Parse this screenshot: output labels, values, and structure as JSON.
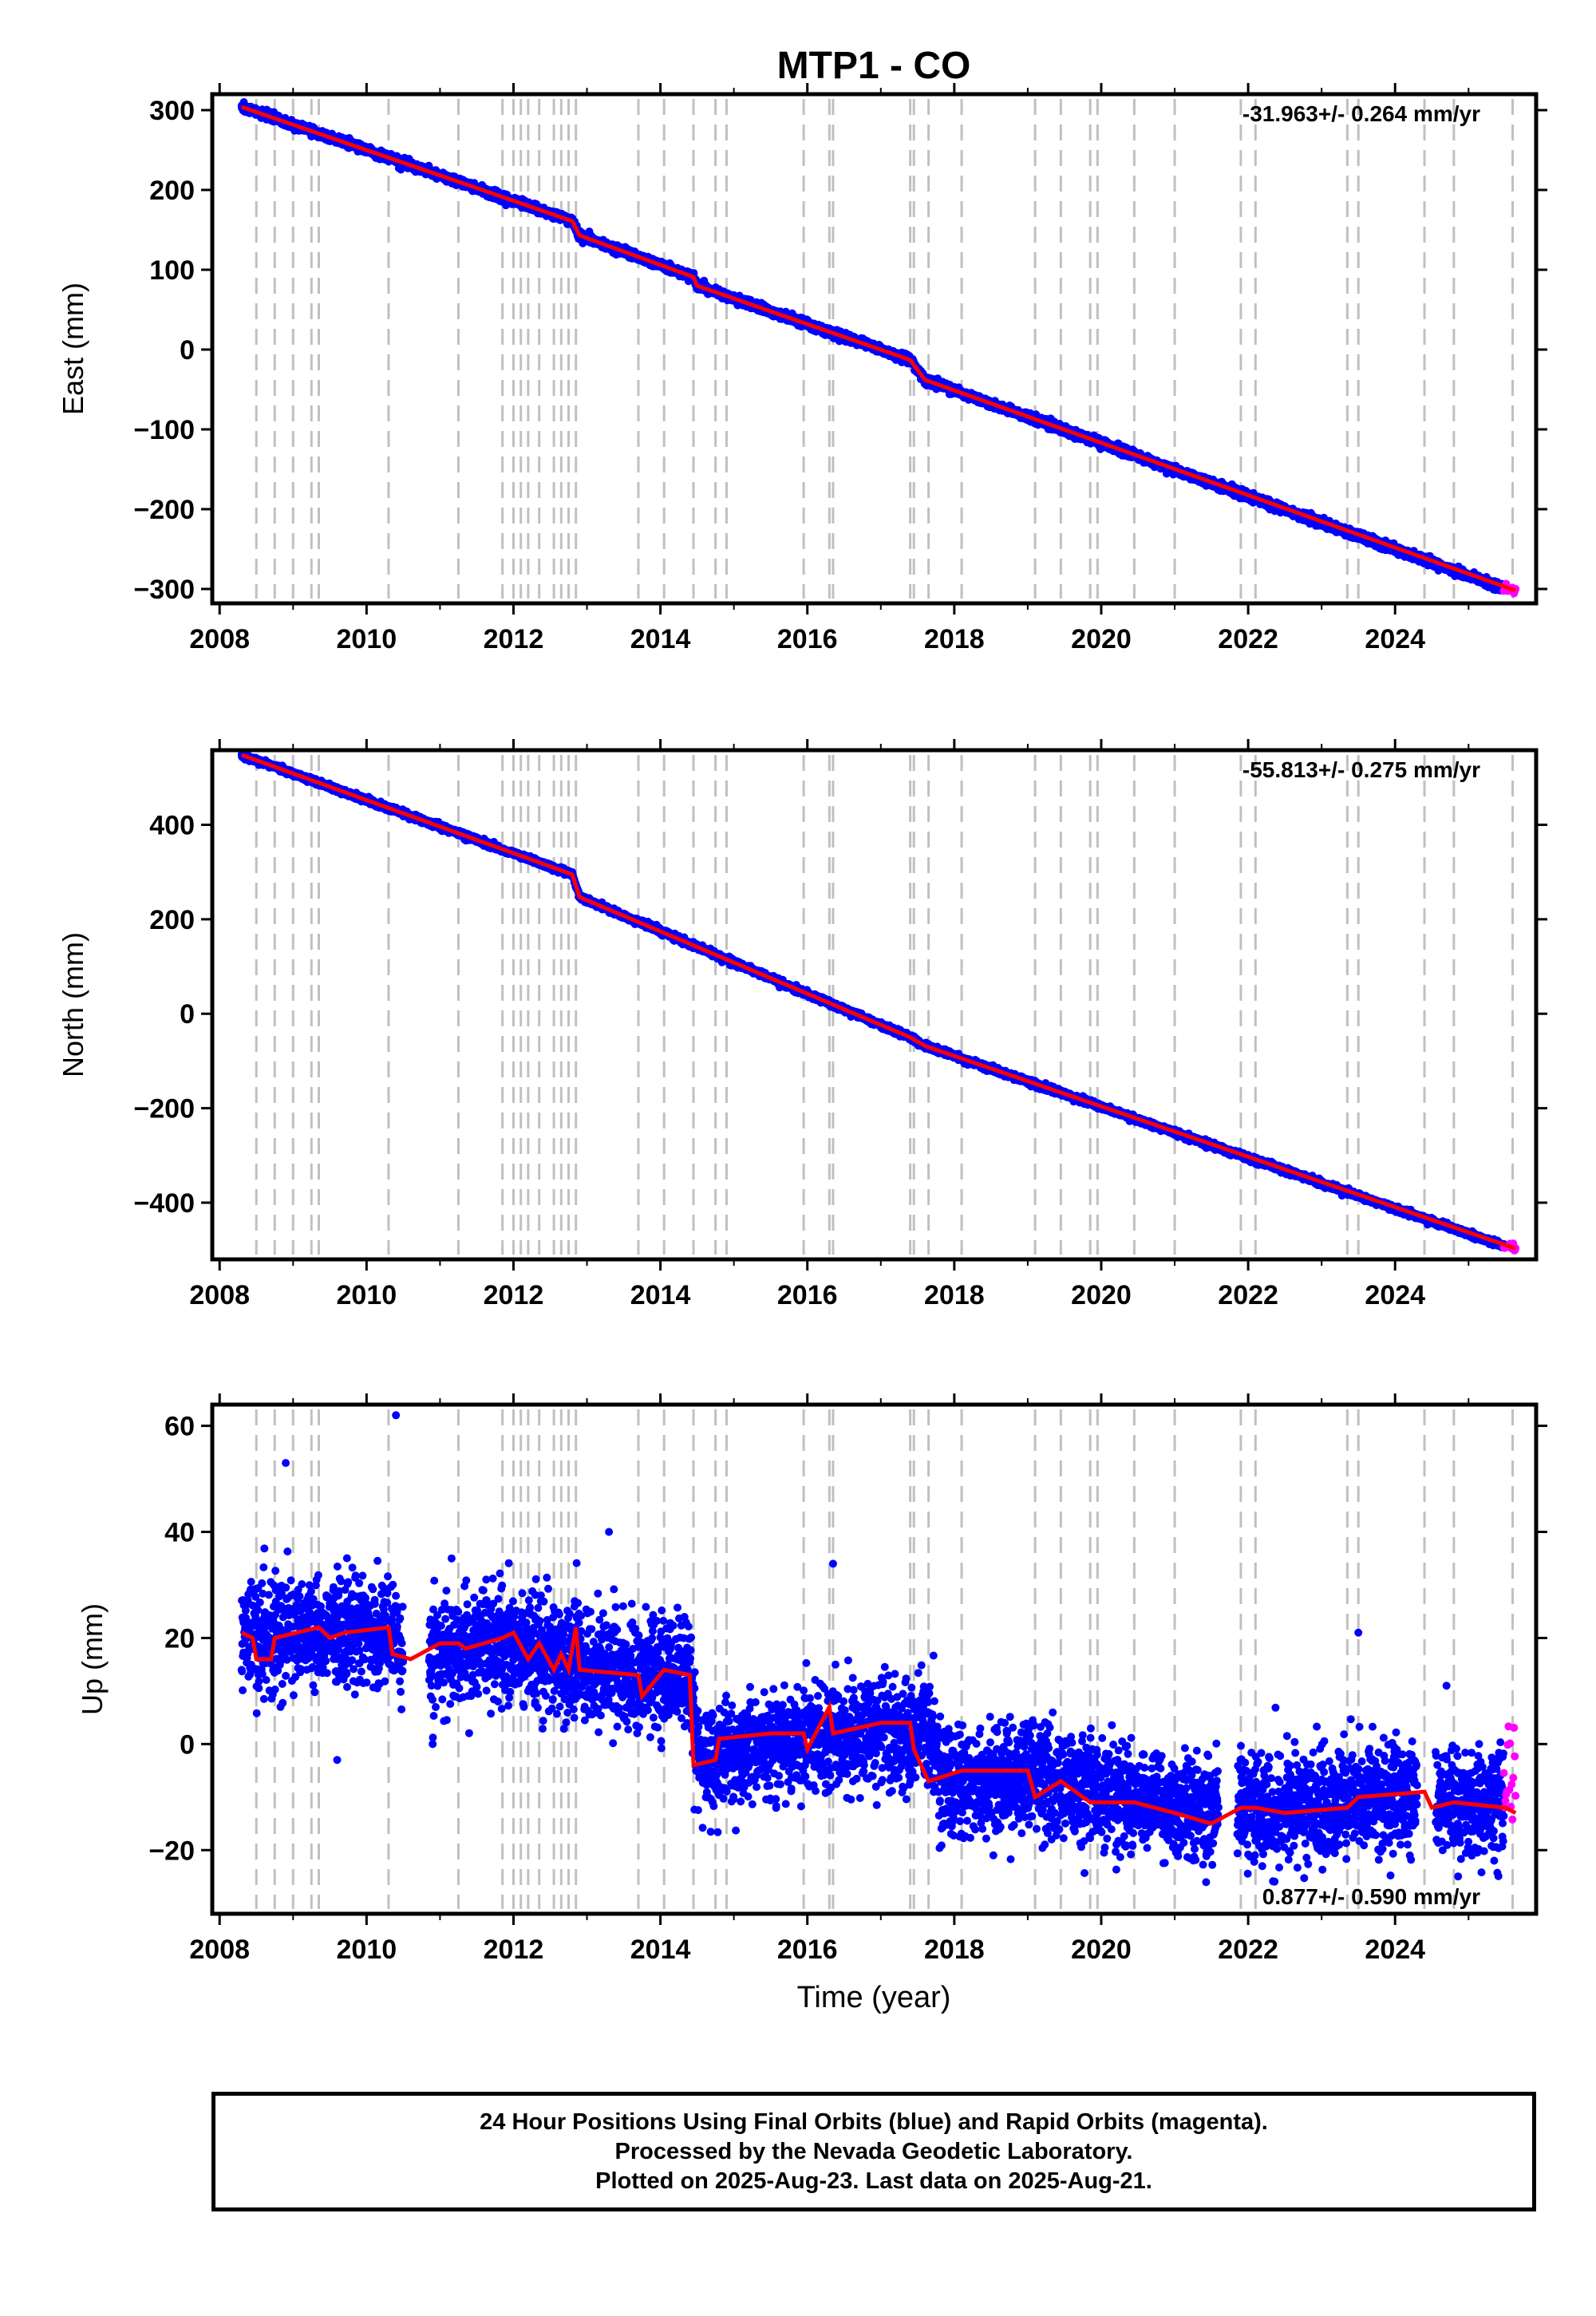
{
  "title": "MTP1 - CO",
  "x_axis_label": "Time (year)",
  "footer": {
    "line1": "24 Hour Positions Using Final Orbits (blue) and Rapid Orbits (magenta).",
    "line2": "Processed by the Nevada Geodetic Laboratory.",
    "line3": "Plotted on 2025-Aug-23. Last data on 2025-Aug-21."
  },
  "colors": {
    "final_orbits": "#0000ff",
    "rapid_orbits": "#ff00ff",
    "model_fit": "#ff0000",
    "equipment_lines": "#c0c0c0",
    "frame": "#000000"
  },
  "chart_data": [
    {
      "type": "scatter",
      "component": "East",
      "ylabel": "East (mm)",
      "xlim": [
        2007.9,
        2025.92
      ],
      "ylim": [
        -318,
        320
      ],
      "xticks": [
        2008,
        2010,
        2012,
        2014,
        2016,
        2018,
        2020,
        2022,
        2024
      ],
      "yticks": [
        -300,
        -200,
        -100,
        0,
        100,
        200,
        300
      ],
      "rate_text": "-31.963+/- 0.264 mm/yr",
      "rate_position": "top-right",
      "series": [
        {
          "name": "Final Orbits",
          "color": "blue",
          "x_range": [
            2008.3,
            2025.48
          ],
          "trend": [
            [
              2008.3,
              304
            ],
            [
              2012.8,
              161
            ],
            [
              2012.9,
              143
            ],
            [
              2014.45,
              91
            ],
            [
              2014.5,
              80
            ],
            [
              2017.4,
              -13
            ],
            [
              2017.6,
              -38
            ],
            [
              2025.48,
              -299
            ]
          ],
          "noise_sd": 2.5
        },
        {
          "name": "Rapid Orbits",
          "color": "magenta",
          "x_range": [
            2025.48,
            2025.64
          ],
          "trend": [
            [
              2025.48,
              -299
            ],
            [
              2025.64,
              -302
            ]
          ],
          "noise_sd": 2.5
        },
        {
          "name": "Model",
          "color": "red",
          "line": [
            [
              2008.3,
              304
            ],
            [
              2012.8,
              161
            ],
            [
              2012.9,
              143
            ],
            [
              2014.45,
              91
            ],
            [
              2014.5,
              80
            ],
            [
              2017.4,
              -13
            ],
            [
              2017.6,
              -38
            ],
            [
              2025.64,
              -302
            ]
          ]
        }
      ],
      "equipment_changes": [
        2008.5,
        2008.75,
        2009.0,
        2009.25,
        2009.35,
        2010.3,
        2011.25,
        2011.85,
        2012.0,
        2012.1,
        2012.2,
        2012.35,
        2012.55,
        2012.65,
        2012.75,
        2012.85,
        2013.7,
        2014.05,
        2014.45,
        2014.75,
        2014.9,
        2015.95,
        2016.3,
        2016.35,
        2017.4,
        2017.45,
        2017.65,
        2018.1,
        2019.1,
        2019.45,
        2019.85,
        2019.95,
        2020.45,
        2021.0,
        2021.9,
        2022.1,
        2023.35,
        2023.5,
        2024.4,
        2024.8,
        2025.6
      ]
    },
    {
      "type": "scatter",
      "component": "North",
      "ylabel": "North (mm)",
      "xlim": [
        2007.9,
        2025.92
      ],
      "ylim": [
        -520,
        558
      ],
      "xticks": [
        2008,
        2010,
        2012,
        2014,
        2016,
        2018,
        2020,
        2022,
        2024
      ],
      "yticks": [
        -400,
        -200,
        0,
        200,
        400
      ],
      "rate_text": "-55.813+/- 0.275 mm/yr",
      "rate_position": "top-right",
      "series": [
        {
          "name": "Final Orbits",
          "color": "blue",
          "x_range": [
            2008.3,
            2025.48
          ],
          "trend": [
            [
              2008.3,
              548
            ],
            [
              2012.8,
              295
            ],
            [
              2012.9,
              247
            ],
            [
              2017.4,
              -50
            ],
            [
              2017.6,
              -68
            ],
            [
              2025.48,
              -492
            ]
          ],
          "noise_sd": 3
        },
        {
          "name": "Rapid Orbits",
          "color": "magenta",
          "x_range": [
            2025.48,
            2025.64
          ],
          "trend": [
            [
              2025.48,
              -492
            ],
            [
              2025.64,
              -497
            ]
          ],
          "noise_sd": 3
        },
        {
          "name": "Model",
          "color": "red",
          "line": [
            [
              2008.3,
              548
            ],
            [
              2012.8,
              295
            ],
            [
              2012.9,
              247
            ],
            [
              2017.4,
              -50
            ],
            [
              2017.6,
              -68
            ],
            [
              2025.64,
              -497
            ]
          ]
        }
      ],
      "equipment_changes": [
        2008.5,
        2008.75,
        2009.0,
        2009.25,
        2009.35,
        2010.3,
        2011.25,
        2011.85,
        2012.0,
        2012.1,
        2012.2,
        2012.35,
        2012.55,
        2012.65,
        2012.75,
        2012.85,
        2013.7,
        2014.05,
        2014.45,
        2014.75,
        2014.9,
        2015.95,
        2016.3,
        2016.35,
        2017.4,
        2017.45,
        2017.65,
        2018.1,
        2019.1,
        2019.45,
        2019.85,
        2019.95,
        2020.45,
        2021.0,
        2021.9,
        2022.1,
        2023.35,
        2023.5,
        2024.4,
        2024.8,
        2025.6
      ]
    },
    {
      "type": "scatter",
      "component": "Up",
      "ylabel": "Up (mm)",
      "xlim": [
        2007.9,
        2025.92
      ],
      "ylim": [
        -32,
        64
      ],
      "xticks": [
        2008,
        2010,
        2012,
        2014,
        2016,
        2018,
        2020,
        2022,
        2024
      ],
      "yticks": [
        -20,
        0,
        20,
        40,
        60
      ],
      "rate_text": "0.877+/- 0.590 mm/yr",
      "rate_position": "bottom-right",
      "series": [
        {
          "name": "Final Orbits",
          "color": "blue",
          "x_range": [
            2008.3,
            2025.48
          ],
          "gaps": [
            [
              2010.5,
              2010.85
            ],
            [
              2021.6,
              2021.85
            ],
            [
              2024.3,
              2024.55
            ]
          ],
          "trend": [
            [
              2008.3,
              21
            ],
            [
              2010.4,
              21
            ],
            [
              2010.5,
              16
            ],
            [
              2011.5,
              19
            ],
            [
              2012.3,
              18
            ],
            [
              2013.0,
              14
            ],
            [
              2014.4,
              13
            ],
            [
              2014.5,
              -3
            ],
            [
              2016.0,
              1
            ],
            [
              2017.7,
              3
            ],
            [
              2017.8,
              -7
            ],
            [
              2019.0,
              -6
            ],
            [
              2020.0,
              -9
            ],
            [
              2021.5,
              -12
            ],
            [
              2022.0,
              -12
            ],
            [
              2023.5,
              -11
            ],
            [
              2024.0,
              -9
            ],
            [
              2024.5,
              -12
            ],
            [
              2025.48,
              -11
            ]
          ],
          "noise_sd": 5
        },
        {
          "name": "Rapid Orbits",
          "color": "magenta",
          "x_range": [
            2025.48,
            2025.64
          ],
          "trend": [
            [
              2025.48,
              -8
            ],
            [
              2025.64,
              -6
            ]
          ],
          "noise_sd": 6
        },
        {
          "name": "Model",
          "color": "red",
          "line": [
            [
              2008.3,
              21
            ],
            [
              2008.45,
              20
            ],
            [
              2008.5,
              16
            ],
            [
              2008.7,
              16
            ],
            [
              2008.75,
              20
            ],
            [
              2009.35,
              22
            ],
            [
              2009.5,
              20
            ],
            [
              2009.7,
              21
            ],
            [
              2010.3,
              22
            ],
            [
              2010.35,
              17
            ],
            [
              2010.6,
              16
            ],
            [
              2011.0,
              19
            ],
            [
              2011.25,
              19
            ],
            [
              2011.35,
              18
            ],
            [
              2011.6,
              19
            ],
            [
              2011.85,
              20
            ],
            [
              2012.0,
              21
            ],
            [
              2012.2,
              16
            ],
            [
              2012.35,
              19
            ],
            [
              2012.55,
              14
            ],
            [
              2012.65,
              17
            ],
            [
              2012.75,
              14
            ],
            [
              2012.85,
              22
            ],
            [
              2012.9,
              14
            ],
            [
              2013.7,
              13
            ],
            [
              2013.75,
              9
            ],
            [
              2014.05,
              14
            ],
            [
              2014.4,
              13
            ],
            [
              2014.45,
              -4
            ],
            [
              2014.75,
              -3
            ],
            [
              2014.8,
              1
            ],
            [
              2015.5,
              2
            ],
            [
              2015.95,
              2
            ],
            [
              2016.0,
              -1
            ],
            [
              2016.3,
              7
            ],
            [
              2016.35,
              2
            ],
            [
              2017.0,
              4
            ],
            [
              2017.4,
              4
            ],
            [
              2017.45,
              -1
            ],
            [
              2017.65,
              -7
            ],
            [
              2018.1,
              -5
            ],
            [
              2019.0,
              -5
            ],
            [
              2019.1,
              -10
            ],
            [
              2019.45,
              -7
            ],
            [
              2019.85,
              -11
            ],
            [
              2020.45,
              -11
            ],
            [
              2021.0,
              -13
            ],
            [
              2021.5,
              -15
            ],
            [
              2021.9,
              -12
            ],
            [
              2022.1,
              -12
            ],
            [
              2022.5,
              -13
            ],
            [
              2023.35,
              -12
            ],
            [
              2023.5,
              -10
            ],
            [
              2024.4,
              -9
            ],
            [
              2024.5,
              -12
            ],
            [
              2024.8,
              -11
            ],
            [
              2025.5,
              -12
            ],
            [
              2025.64,
              -13
            ]
          ]
        }
      ],
      "equipment_changes": [
        2008.5,
        2008.75,
        2009.0,
        2009.25,
        2009.35,
        2010.3,
        2011.25,
        2011.85,
        2012.0,
        2012.1,
        2012.2,
        2012.35,
        2012.55,
        2012.65,
        2012.75,
        2012.85,
        2013.7,
        2014.05,
        2014.45,
        2014.75,
        2014.9,
        2015.95,
        2016.3,
        2016.35,
        2017.4,
        2017.45,
        2017.65,
        2018.1,
        2019.1,
        2019.45,
        2019.85,
        2019.95,
        2020.45,
        2021.0,
        2021.9,
        2022.1,
        2023.35,
        2023.5,
        2024.4,
        2024.8,
        2025.6
      ],
      "outliers": [
        [
          2008.9,
          53
        ],
        [
          2010.4,
          62
        ],
        [
          2013.3,
          40
        ],
        [
          2016.35,
          34
        ],
        [
          2023.5,
          21
        ],
        [
          2024.7,
          11
        ],
        [
          2009.6,
          -3
        ],
        [
          2010.9,
          0
        ]
      ]
    }
  ]
}
